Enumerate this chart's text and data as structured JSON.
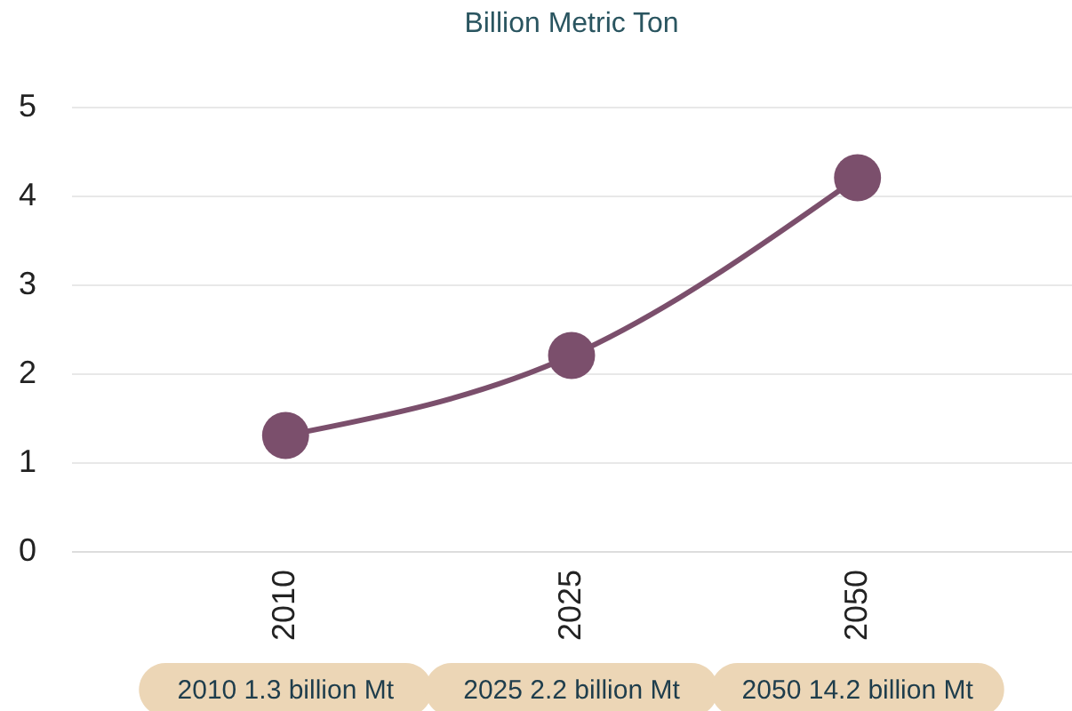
{
  "chart_data": {
    "type": "line",
    "title": "Billion Metric Ton",
    "categories": [
      "2010",
      "2025",
      "2050"
    ],
    "series": [
      {
        "color": "#7b4f6c",
        "values": [
          1.3,
          2.2,
          4.2
        ]
      }
    ],
    "ylim": [
      0,
      5
    ],
    "yticks": [
      0,
      1,
      2,
      3,
      4,
      5
    ],
    "grid": "y",
    "marker": "circle",
    "line_style": "solid",
    "annotations": [
      "2010 1.3 billion Mt",
      "2025 2.2 billion Mt",
      "2050 14.2 billion Mt"
    ]
  }
}
